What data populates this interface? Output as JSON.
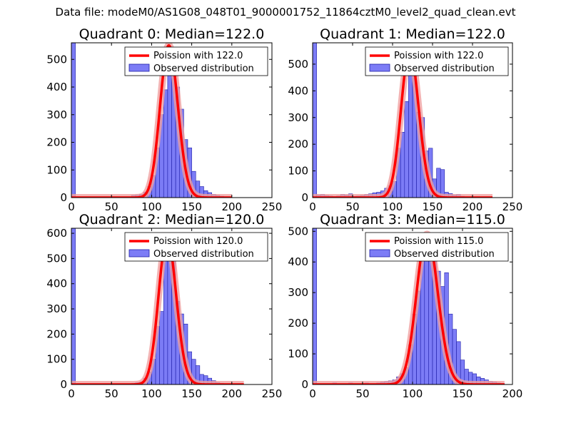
{
  "figure_title": "Data file: modeM0/AS1G08_048T01_9000001752_11864cztM0_level2_quad_clean.evt",
  "colors": {
    "bar_fill": "#7c7cf6",
    "bar_edge": "#1e1ea8",
    "curve": "#ff0000",
    "curve_halo": "#f0a0a0"
  },
  "chart_data": [
    {
      "type": "bar",
      "title": "Quadrant 0: Median=122.0",
      "median": 122.0,
      "xlim": [
        0,
        250
      ],
      "ylim": [
        0,
        560
      ],
      "xticks": [
        0,
        50,
        100,
        150,
        200,
        250
      ],
      "yticks": [
        0,
        100,
        200,
        300,
        400,
        500
      ],
      "bin_width": 5,
      "bins": [
        [
          0,
          560
        ],
        [
          75,
          8
        ],
        [
          80,
          10
        ],
        [
          85,
          12
        ],
        [
          90,
          20
        ],
        [
          95,
          40
        ],
        [
          100,
          80
        ],
        [
          105,
          180
        ],
        [
          110,
          300
        ],
        [
          115,
          390
        ],
        [
          120,
          520
        ],
        [
          125,
          480
        ],
        [
          130,
          400
        ],
        [
          135,
          320
        ],
        [
          140,
          210
        ],
        [
          145,
          180
        ],
        [
          150,
          95
        ],
        [
          155,
          60
        ],
        [
          160,
          40
        ],
        [
          165,
          25
        ],
        [
          170,
          18
        ],
        [
          175,
          12
        ],
        [
          180,
          8
        ],
        [
          185,
          5
        ],
        [
          190,
          3
        ],
        [
          195,
          2
        ]
      ],
      "curve_mu": 122.0,
      "curve_x_range": [
        0,
        200
      ],
      "curve_peak": 550,
      "legend": [
        "Poission with 122.0",
        "Observed distribution"
      ]
    },
    {
      "type": "bar",
      "title": "Quadrant 1: Median=122.0",
      "median": 122.0,
      "xlim": [
        0,
        250
      ],
      "ylim": [
        0,
        580
      ],
      "xticks": [
        0,
        50,
        100,
        150,
        200,
        250
      ],
      "yticks": [
        0,
        100,
        200,
        300,
        400,
        500
      ],
      "bin_width": 5,
      "bins": [
        [
          0,
          580
        ],
        [
          5,
          10
        ],
        [
          10,
          12
        ],
        [
          15,
          8
        ],
        [
          20,
          6
        ],
        [
          25,
          4
        ],
        [
          30,
          6
        ],
        [
          35,
          12
        ],
        [
          40,
          10
        ],
        [
          45,
          14
        ],
        [
          50,
          5
        ],
        [
          55,
          6
        ],
        [
          60,
          8
        ],
        [
          65,
          12
        ],
        [
          70,
          14
        ],
        [
          75,
          18
        ],
        [
          80,
          20
        ],
        [
          85,
          25
        ],
        [
          90,
          35
        ],
        [
          95,
          45
        ],
        [
          100,
          60
        ],
        [
          105,
          185
        ],
        [
          110,
          245
        ],
        [
          115,
          360
        ],
        [
          120,
          555
        ],
        [
          125,
          455
        ],
        [
          130,
          320
        ],
        [
          135,
          300
        ],
        [
          140,
          175
        ],
        [
          145,
          185
        ],
        [
          150,
          70
        ],
        [
          155,
          110
        ],
        [
          160,
          105
        ],
        [
          165,
          20
        ],
        [
          170,
          15
        ],
        [
          175,
          10
        ],
        [
          180,
          12
        ],
        [
          185,
          5
        ],
        [
          190,
          3
        ],
        [
          195,
          2
        ]
      ],
      "curve_mu": 122.0,
      "curve_x_range": [
        0,
        225
      ],
      "curve_peak": 550,
      "legend": [
        "Poission with 122.0",
        "Observed distribution"
      ]
    },
    {
      "type": "bar",
      "title": "Quadrant 2: Median=120.0",
      "median": 120.0,
      "xlim": [
        0,
        250
      ],
      "ylim": [
        0,
        620
      ],
      "xticks": [
        0,
        50,
        100,
        150,
        200,
        250
      ],
      "yticks": [
        0,
        100,
        200,
        300,
        400,
        500,
        600
      ],
      "bin_width": 5,
      "bins": [
        [
          0,
          620
        ],
        [
          75,
          5
        ],
        [
          80,
          8
        ],
        [
          85,
          10
        ],
        [
          90,
          25
        ],
        [
          95,
          50
        ],
        [
          100,
          100
        ],
        [
          105,
          230
        ],
        [
          110,
          290
        ],
        [
          115,
          530
        ],
        [
          120,
          570
        ],
        [
          125,
          500
        ],
        [
          130,
          330
        ],
        [
          135,
          280
        ],
        [
          140,
          240
        ],
        [
          145,
          130
        ],
        [
          150,
          100
        ],
        [
          155,
          75
        ],
        [
          160,
          40
        ],
        [
          165,
          35
        ],
        [
          170,
          25
        ],
        [
          175,
          15
        ],
        [
          180,
          8
        ],
        [
          185,
          5
        ],
        [
          190,
          3
        ],
        [
          195,
          2
        ]
      ],
      "curve_mu": 120.0,
      "curve_x_range": [
        0,
        215
      ],
      "curve_peak": 585,
      "legend": [
        "Poission with 120.0",
        "Observed distribution"
      ]
    },
    {
      "type": "bar",
      "title": "Quadrant 3: Median=115.0",
      "median": 115.0,
      "xlim": [
        0,
        200
      ],
      "ylim": [
        0,
        510
      ],
      "xticks": [
        0,
        50,
        100,
        150,
        200
      ],
      "yticks": [
        0,
        100,
        200,
        300,
        400,
        500
      ],
      "bin_width": 4,
      "bins": [
        [
          0,
          510
        ],
        [
          20,
          5
        ],
        [
          36,
          5
        ],
        [
          52,
          5
        ],
        [
          64,
          5
        ],
        [
          68,
          8
        ],
        [
          72,
          10
        ],
        [
          76,
          12
        ],
        [
          80,
          15
        ],
        [
          84,
          25
        ],
        [
          88,
          35
        ],
        [
          92,
          55
        ],
        [
          96,
          130
        ],
        [
          100,
          230
        ],
        [
          104,
          305
        ],
        [
          108,
          480
        ],
        [
          112,
          480
        ],
        [
          116,
          460
        ],
        [
          120,
          410
        ],
        [
          124,
          370
        ],
        [
          128,
          320
        ],
        [
          132,
          365
        ],
        [
          136,
          230
        ],
        [
          140,
          180
        ],
        [
          144,
          140
        ],
        [
          148,
          80
        ],
        [
          152,
          50
        ],
        [
          156,
          40
        ],
        [
          160,
          35
        ],
        [
          164,
          25
        ],
        [
          168,
          20
        ],
        [
          172,
          15
        ],
        [
          176,
          10
        ],
        [
          180,
          8
        ],
        [
          184,
          5
        ],
        [
          188,
          3
        ]
      ],
      "curve_mu": 115.0,
      "curve_x_range": [
        0,
        192
      ],
      "curve_peak": 490,
      "legend": [
        "Poission with 115.0",
        "Observed distribution"
      ]
    }
  ]
}
